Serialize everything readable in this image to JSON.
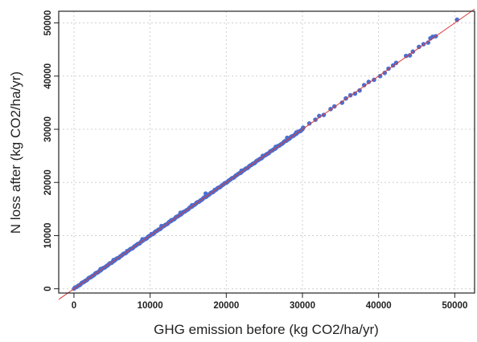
{
  "chart_data": {
    "type": "scatter",
    "title": "",
    "xlabel": "GHG emission before (kg CO2/ha/yr)",
    "ylabel": "N loss after (kg CO2/ha/yr)",
    "xlim": [
      -2000,
      52600
    ],
    "ylim": [
      -800,
      52200
    ],
    "xticks": [
      0,
      10000,
      20000,
      30000,
      40000,
      50000
    ],
    "yticks": [
      0,
      10000,
      20000,
      30000,
      40000,
      50000
    ],
    "grid": true,
    "reference_line": {
      "slope": 1,
      "intercept": 0,
      "color": "#d93b3b"
    },
    "point_color": "#4a6fd1",
    "dense_band": {
      "from": 0,
      "to": 30000,
      "step": 60
    },
    "points": [
      [
        3500,
        3700
      ],
      [
        5200,
        5400
      ],
      [
        7000,
        7100
      ],
      [
        9000,
        9300
      ],
      [
        10200,
        10300
      ],
      [
        11500,
        11800
      ],
      [
        12800,
        12900
      ],
      [
        14000,
        14300
      ],
      [
        15500,
        15700
      ],
      [
        17300,
        17900
      ],
      [
        18500,
        18600
      ],
      [
        22000,
        22200
      ],
      [
        24800,
        25000
      ],
      [
        26500,
        26700
      ],
      [
        28000,
        28400
      ],
      [
        29200,
        29400
      ],
      [
        30100,
        30300
      ],
      [
        30900,
        31100
      ],
      [
        31700,
        31800
      ],
      [
        32200,
        32500
      ],
      [
        32800,
        32700
      ],
      [
        33700,
        33800
      ],
      [
        34200,
        34300
      ],
      [
        35200,
        35000
      ],
      [
        35700,
        35800
      ],
      [
        36300,
        36400
      ],
      [
        36900,
        36700
      ],
      [
        37500,
        37300
      ],
      [
        38100,
        38300
      ],
      [
        38700,
        38900
      ],
      [
        39400,
        39300
      ],
      [
        40200,
        40000
      ],
      [
        40800,
        40600
      ],
      [
        41300,
        41400
      ],
      [
        41900,
        42000
      ],
      [
        42300,
        42500
      ],
      [
        43600,
        43800
      ],
      [
        44100,
        43900
      ],
      [
        44500,
        44600
      ],
      [
        45300,
        45500
      ],
      [
        45900,
        46000
      ],
      [
        46500,
        46300
      ],
      [
        46800,
        47100
      ],
      [
        47100,
        47400
      ],
      [
        47500,
        47500
      ],
      [
        50300,
        50600
      ]
    ]
  }
}
